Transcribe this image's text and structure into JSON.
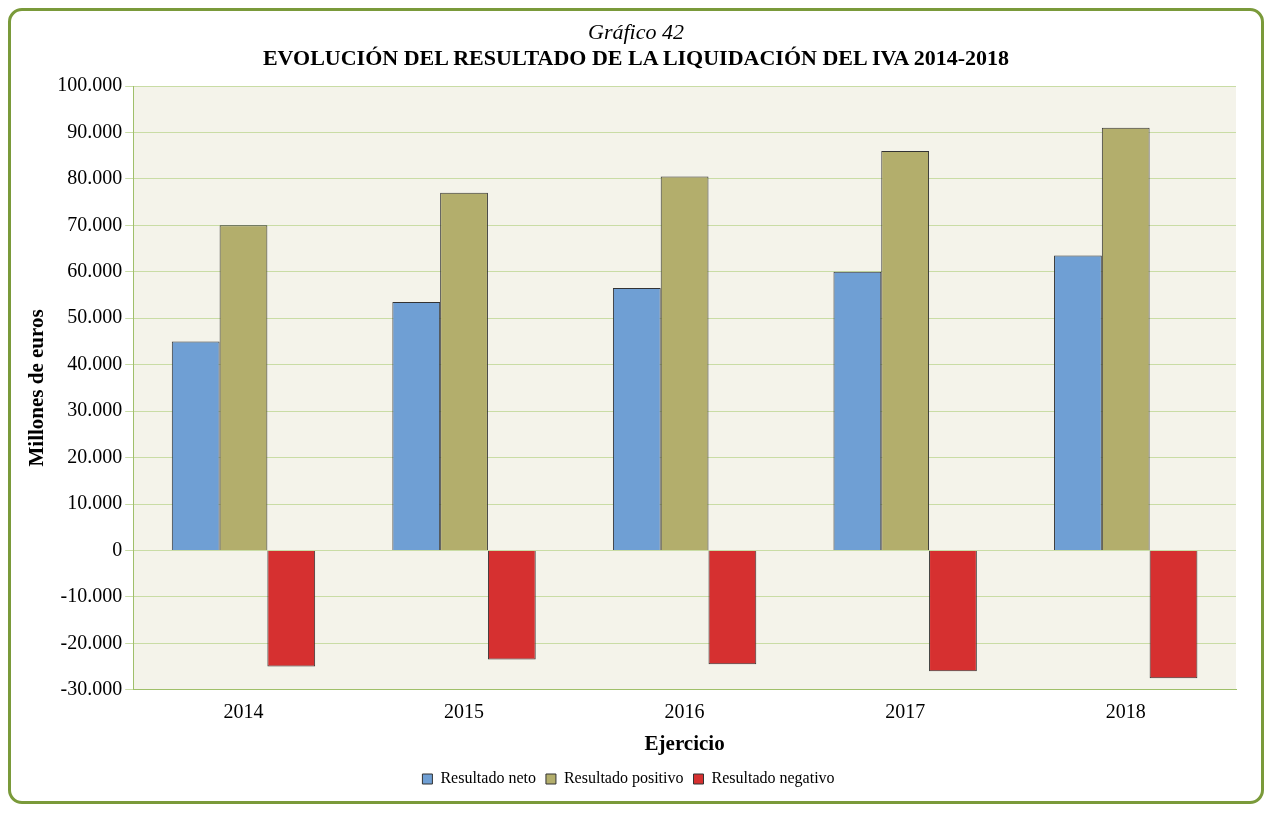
{
  "chart_data": {
    "type": "bar",
    "subtitle": "Gráfico 42",
    "title": "EVOLUCIÓN DEL RESULTADO DE LA LIQUIDACIÓN DEL IVA 2014-2018",
    "xlabel": "Ejercicio",
    "ylabel": "Millones de euros",
    "categories": [
      "2014",
      "2015",
      "2016",
      "2017",
      "2018"
    ],
    "series": [
      {
        "name": "Resultado neto",
        "color": "#6f9fd4",
        "values": [
          45000,
          53500,
          56500,
          60000,
          63500
        ]
      },
      {
        "name": "Resultado positivo",
        "color": "#b3ae6c",
        "values": [
          70000,
          77000,
          80500,
          86000,
          91000
        ]
      },
      {
        "name": "Resultado negativo",
        "color": "#d63030",
        "values": [
          -25000,
          -23500,
          -24500,
          -26000,
          -27500
        ]
      }
    ],
    "ylim": [
      -30000,
      100000
    ],
    "yticks": [
      {
        "value": -30000,
        "label": "-30.000"
      },
      {
        "value": -20000,
        "label": "-20.000"
      },
      {
        "value": -10000,
        "label": "-10.000"
      },
      {
        "value": 0,
        "label": "0"
      },
      {
        "value": 10000,
        "label": "10.000"
      },
      {
        "value": 20000,
        "label": "20.000"
      },
      {
        "value": 30000,
        "label": "30.000"
      },
      {
        "value": 40000,
        "label": "40.000"
      },
      {
        "value": 50000,
        "label": "50.000"
      },
      {
        "value": 60000,
        "label": "60.000"
      },
      {
        "value": 70000,
        "label": "70.000"
      },
      {
        "value": 80000,
        "label": "80.000"
      },
      {
        "value": 90000,
        "label": "90.000"
      },
      {
        "value": 100000,
        "label": "100.000"
      }
    ],
    "grid": "y",
    "legend": "bottom"
  }
}
